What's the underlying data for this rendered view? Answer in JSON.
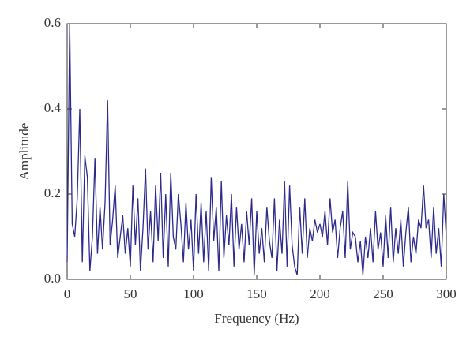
{
  "chart_data": {
    "type": "line",
    "xlabel": "Frequency (Hz)",
    "ylabel": "Amplitude",
    "x": [
      0,
      2,
      4,
      6,
      8,
      10,
      12,
      14,
      16,
      18,
      20,
      22,
      24,
      26,
      28,
      30,
      32,
      34,
      36,
      38,
      40,
      42,
      44,
      46,
      48,
      50,
      52,
      54,
      56,
      58,
      60,
      62,
      64,
      66,
      68,
      70,
      72,
      74,
      76,
      78,
      80,
      82,
      84,
      86,
      88,
      90,
      92,
      94,
      96,
      98,
      100,
      102,
      104,
      106,
      108,
      110,
      112,
      114,
      116,
      118,
      120,
      122,
      124,
      126,
      128,
      130,
      132,
      134,
      136,
      138,
      140,
      142,
      144,
      146,
      148,
      150,
      152,
      154,
      156,
      158,
      160,
      162,
      164,
      166,
      168,
      170,
      172,
      174,
      176,
      178,
      180,
      182,
      184,
      186,
      188,
      190,
      192,
      194,
      196,
      198,
      200,
      202,
      204,
      206,
      208,
      210,
      212,
      214,
      216,
      218,
      220,
      222,
      224,
      226,
      228,
      230,
      232,
      234,
      236,
      238,
      240,
      242,
      244,
      246,
      248,
      250,
      252,
      254,
      256,
      258,
      260,
      262,
      264,
      266,
      268,
      270,
      272,
      274,
      276,
      278,
      280,
      282,
      284,
      286,
      288,
      290,
      292,
      294,
      296,
      298,
      300
    ],
    "series": [
      {
        "color": "#2e2a8c",
        "values": [
          0.04,
          0.6,
          0.13,
          0.1,
          0.19,
          0.4,
          0.04,
          0.29,
          0.24,
          0.02,
          0.1,
          0.285,
          0.06,
          0.17,
          0.07,
          0.18,
          0.42,
          0.08,
          0.14,
          0.22,
          0.05,
          0.1,
          0.15,
          0.06,
          0.12,
          0.03,
          0.22,
          0.08,
          0.19,
          0.02,
          0.12,
          0.26,
          0.07,
          0.16,
          0.04,
          0.22,
          0.09,
          0.25,
          0.05,
          0.2,
          0.03,
          0.25,
          0.1,
          0.07,
          0.2,
          0.13,
          0.04,
          0.18,
          0.07,
          0.14,
          0.02,
          0.2,
          0.06,
          0.18,
          0.04,
          0.16,
          0.02,
          0.24,
          0.09,
          0.17,
          0.02,
          0.23,
          0.05,
          0.15,
          0.08,
          0.2,
          0.03,
          0.17,
          0.07,
          0.13,
          0.04,
          0.16,
          0.08,
          0.19,
          0.01,
          0.16,
          0.06,
          0.12,
          0.04,
          0.17,
          0.09,
          0.05,
          0.19,
          0.02,
          0.14,
          0.06,
          0.23,
          0.03,
          0.22,
          0.08,
          0.03,
          0.01,
          0.17,
          0.06,
          0.19,
          0.05,
          0.12,
          0.09,
          0.14,
          0.11,
          0.13,
          0.1,
          0.16,
          0.08,
          0.19,
          0.11,
          0.14,
          0.05,
          0.12,
          0.16,
          0.05,
          0.23,
          0.07,
          0.11,
          0.1,
          0.04,
          0.09,
          0.01,
          0.1,
          0.05,
          0.12,
          0.04,
          0.16,
          0.07,
          0.11,
          0.03,
          0.15,
          0.05,
          0.17,
          0.04,
          0.12,
          0.06,
          0.14,
          0.03,
          0.11,
          0.17,
          0.04,
          0.1,
          0.06,
          0.14,
          0.12,
          0.22,
          0.12,
          0.14,
          0.05,
          0.17,
          0.06,
          0.12,
          0.03,
          0.2,
          0.1
        ]
      }
    ],
    "xlim": [
      0,
      300
    ],
    "xticks": [
      0,
      50,
      100,
      150,
      200,
      250,
      300
    ],
    "ylim": [
      0,
      0.6
    ],
    "yticks": [
      {
        "value": 0,
        "label": "0.0"
      },
      0.2,
      0.4,
      0.6
    ]
  }
}
